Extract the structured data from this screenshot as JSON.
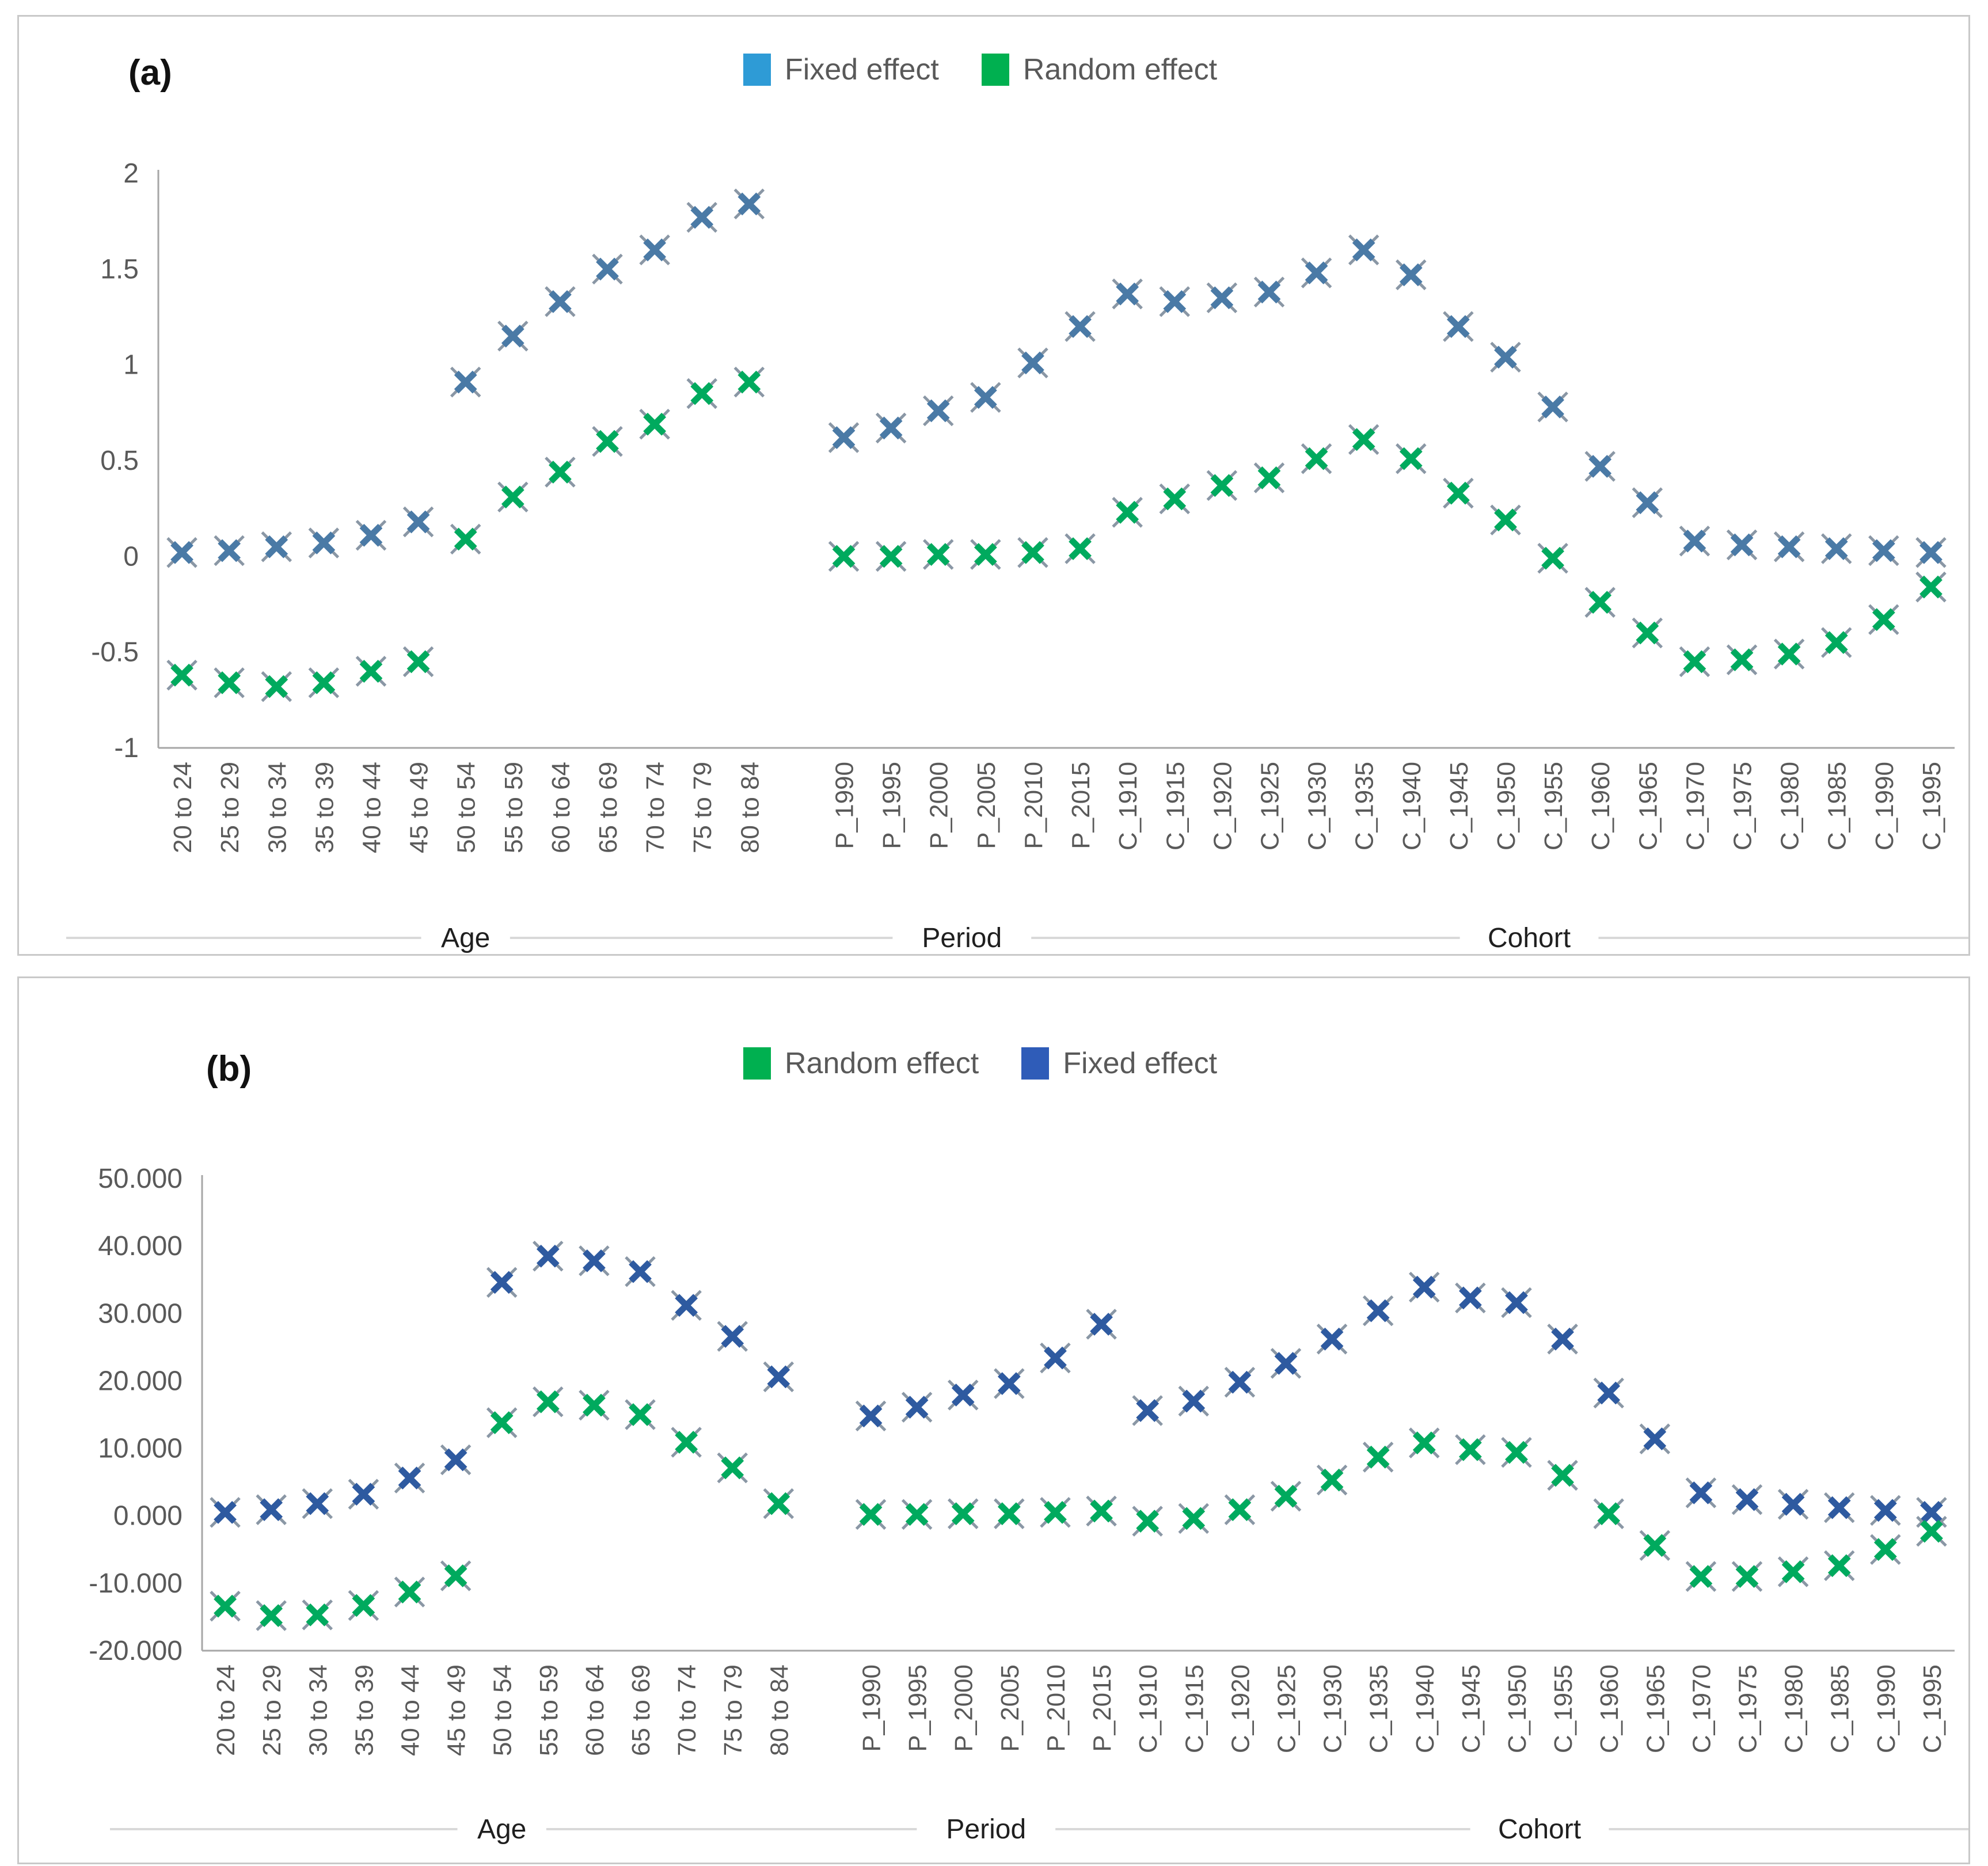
{
  "chart_data": [
    {
      "type": "scatter",
      "panel_label": "(a)",
      "marker": "x",
      "grid": false,
      "legend_position": "top-center",
      "legend": [
        {
          "label": "Fixed effect",
          "swatch_color": "#2e9bd6"
        },
        {
          "label": "Random effect",
          "swatch_color": "#00b050"
        }
      ],
      "ylim": [
        -1,
        2
      ],
      "y_ticks": [
        {
          "label": "2",
          "value": 2
        },
        {
          "label": "1.5",
          "value": 1.5
        },
        {
          "label": "1",
          "value": 1
        },
        {
          "label": "0.5",
          "value": 0.5
        },
        {
          "label": "0",
          "value": 0
        },
        {
          "label": "-0.5",
          "value": -0.5
        },
        {
          "label": "-1",
          "value": -1
        }
      ],
      "groups": [
        {
          "label": "Age",
          "gap_before_slots": 0,
          "categories": [
            "20 to 24",
            "25 to 29",
            "30 to 34",
            "35 to 39",
            "40 to 44",
            "45 to 49",
            "50 to 54",
            "55 to 59",
            "60 to 64",
            "65 to 69",
            "70 to 74",
            "75 to 79",
            "80 to 84"
          ]
        },
        {
          "label": "Period",
          "gap_before_slots": 1,
          "categories": [
            "P_1990",
            "P_1995",
            "P_2000",
            "P_2005",
            "P_2010",
            "P_2015"
          ]
        },
        {
          "label": "Cohort",
          "gap_before_slots": 0,
          "categories": [
            "C_1910",
            "C_1915",
            "C_1920",
            "C_1925",
            "C_1930",
            "C_1935",
            "C_1940",
            "C_1945",
            "C_1950",
            "C_1955",
            "C_1960",
            "C_1965",
            "C_1970",
            "C_1975",
            "C_1980",
            "C_1985",
            "C_1990",
            "C_1995"
          ]
        }
      ],
      "series": [
        {
          "name": "Fixed effect",
          "marker_color": "#4a7aa6",
          "values": {
            "Age": [
              0.02,
              0.03,
              0.05,
              0.07,
              0.11,
              0.18,
              0.91,
              1.15,
              1.33,
              1.5,
              1.6,
              1.77,
              1.84
            ],
            "Period": [
              0.62,
              0.67,
              0.76,
              0.83,
              1.01,
              1.2
            ],
            "Cohort": [
              1.37,
              1.33,
              1.35,
              1.38,
              1.48,
              1.6,
              1.47,
              1.2,
              1.04,
              0.78,
              0.47,
              0.28,
              0.08,
              0.06,
              0.05,
              0.04,
              0.03,
              0.02
            ]
          }
        },
        {
          "name": "Random effect",
          "marker_color": "#00aa5e",
          "values": {
            "Age": [
              -0.62,
              -0.66,
              -0.68,
              -0.66,
              -0.6,
              -0.55,
              0.09,
              0.31,
              0.44,
              0.6,
              0.69,
              0.85,
              0.91
            ],
            "Period": [
              0.0,
              0.0,
              0.01,
              0.01,
              0.02,
              0.04
            ],
            "Cohort": [
              0.23,
              0.3,
              0.37,
              0.41,
              0.51,
              0.61,
              0.51,
              0.33,
              0.19,
              -0.01,
              -0.24,
              -0.4,
              -0.55,
              -0.54,
              -0.51,
              -0.45,
              -0.33,
              -0.16
            ]
          }
        }
      ]
    },
    {
      "type": "scatter",
      "panel_label": "(b)",
      "marker": "x",
      "grid": false,
      "legend_position": "top-center",
      "legend": [
        {
          "label": "Random effect",
          "swatch_color": "#00b050"
        },
        {
          "label": "Fixed effect",
          "swatch_color": "#2f5cb8"
        }
      ],
      "ylim": [
        -20,
        50
      ],
      "y_ticks": [
        {
          "label": "50.000",
          "value": 50
        },
        {
          "label": "40.000",
          "value": 40
        },
        {
          "label": "30.000",
          "value": 30
        },
        {
          "label": "20.000",
          "value": 20
        },
        {
          "label": "10.000",
          "value": 10
        },
        {
          "label": "0.000",
          "value": 0
        },
        {
          "label": "-10.000",
          "value": -10
        },
        {
          "label": "-20.000",
          "value": -20
        }
      ],
      "groups": [
        {
          "label": "Age",
          "gap_before_slots": 0,
          "categories": [
            "20 to 24",
            "25 to 29",
            "30 to 34",
            "35 to 39",
            "40 to 44",
            "45 to 49",
            "50 to 54",
            "55 to 59",
            "60 to 64",
            "65 to 69",
            "70 to 74",
            "75 to 79",
            "80 to 84"
          ]
        },
        {
          "label": "Period",
          "gap_before_slots": 1,
          "categories": [
            "P_1990",
            "P_1995",
            "P_2000",
            "P_2005",
            "P_2010",
            "P_2015"
          ]
        },
        {
          "label": "Cohort",
          "gap_before_slots": 0,
          "categories": [
            "C_1910",
            "C_1915",
            "C_1920",
            "C_1925",
            "C_1930",
            "C_1935",
            "C_1940",
            "C_1945",
            "C_1950",
            "C_1955",
            "C_1960",
            "C_1965",
            "C_1970",
            "C_1975",
            "C_1980",
            "C_1985",
            "C_1990",
            "C_1995"
          ]
        }
      ],
      "series": [
        {
          "name": "Fixed effect",
          "marker_color": "#2e5aa0",
          "values": {
            "Age": [
              0.5,
              0.9,
              1.8,
              3.2,
              5.6,
              8.3,
              34.6,
              38.5,
              37.8,
              36.2,
              31.2,
              26.6,
              20.6
            ],
            "Period": [
              14.8,
              16.1,
              17.9,
              19.6,
              23.4,
              28.4
            ],
            "Cohort": [
              15.6,
              17.0,
              19.8,
              22.6,
              26.2,
              30.4,
              33.9,
              32.3,
              31.6,
              26.2,
              18.2,
              11.4,
              3.4,
              2.4,
              1.7,
              1.2,
              0.8,
              0.5
            ]
          }
        },
        {
          "name": "Random effect",
          "marker_color": "#00aa5e",
          "values": {
            "Age": [
              -13.4,
              -14.8,
              -14.7,
              -13.3,
              -11.3,
              -8.9,
              13.8,
              16.9,
              16.4,
              15.0,
              10.9,
              7.1,
              1.8
            ],
            "Period": [
              0.2,
              0.2,
              0.3,
              0.3,
              0.5,
              0.7
            ],
            "Cohort": [
              -0.8,
              -0.4,
              0.9,
              2.9,
              5.3,
              8.7,
              10.8,
              9.8,
              9.4,
              6.0,
              0.3,
              -4.4,
              -9.0,
              -9.0,
              -8.3,
              -7.4,
              -5.0,
              -2.3
            ]
          }
        }
      ]
    }
  ],
  "style": {
    "axis_color": "#a6a6a6",
    "group_rule_color": "#d9d9d9",
    "tick_label_color": "#595959",
    "group_label_color": "#1f1f1f",
    "marker_tip_color": "#8a97a5"
  }
}
